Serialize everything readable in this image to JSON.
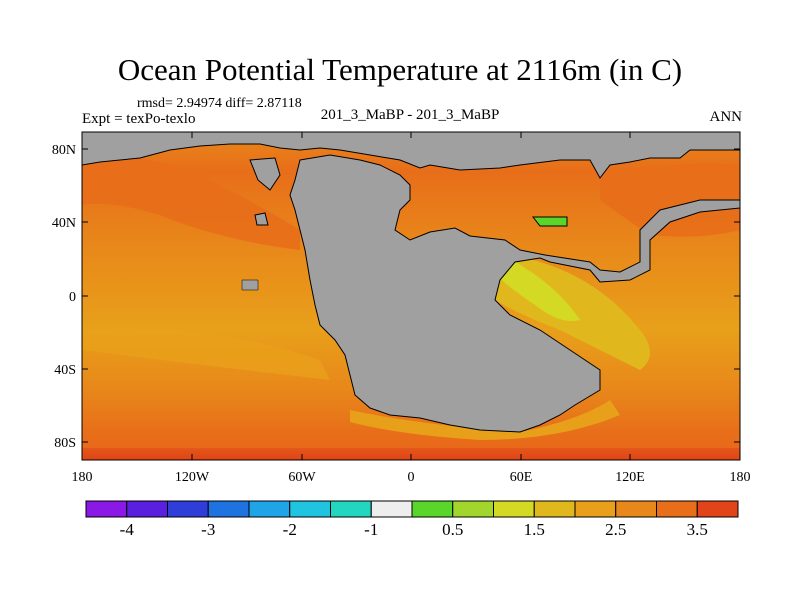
{
  "title": "Ocean Potential Temperature at 2116m (in C)",
  "stats": "rmsd= 2.94974 diff= 2.87118",
  "experiment": "Expt = texPo-texlo",
  "center_label": "201_3_MaBP - 201_3_MaBP",
  "season": "ANN",
  "map": {
    "lon_ticks": [
      "180",
      "120W",
      "60W",
      "0",
      "60E",
      "120E",
      "180"
    ],
    "lat_ticks": [
      "80N",
      "40N",
      "0",
      "40S",
      "80S"
    ],
    "land_color": "#a0a0a0"
  },
  "colorbar": {
    "colors": [
      "#8a19e6",
      "#5b1fe0",
      "#2f3ed8",
      "#1e73e0",
      "#1fa4e8",
      "#20c4e0",
      "#22d6c0",
      "#eeeeee",
      "#5ad62a",
      "#a2d62c",
      "#d4da24",
      "#e0b81e",
      "#e8a01a",
      "#e8881a",
      "#e86e1a",
      "#e04418"
    ],
    "labels": [
      "-4",
      "-3",
      "-2",
      "-1",
      "0.5",
      "1.5",
      "2.5",
      "3.5"
    ]
  }
}
